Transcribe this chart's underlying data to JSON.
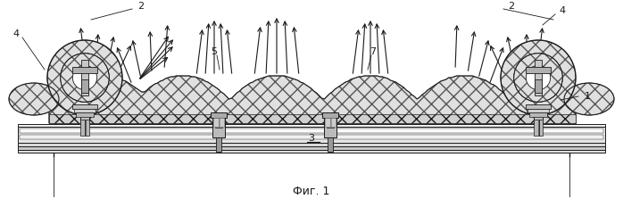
{
  "fig_label": "Фиг. 1",
  "bg_color": "#ffffff",
  "figsize": [
    6.98,
    2.23
  ],
  "dpi": 100,
  "black": "#1a1a1a",
  "hatch_fc": "#e0e0e0",
  "hatch_ec": "#555555",
  "frame_fc": "#e8e8e8",
  "gray1": "#c0c0c0",
  "gray2": "#a0a0a0",
  "gray3": "#d8d8d8"
}
